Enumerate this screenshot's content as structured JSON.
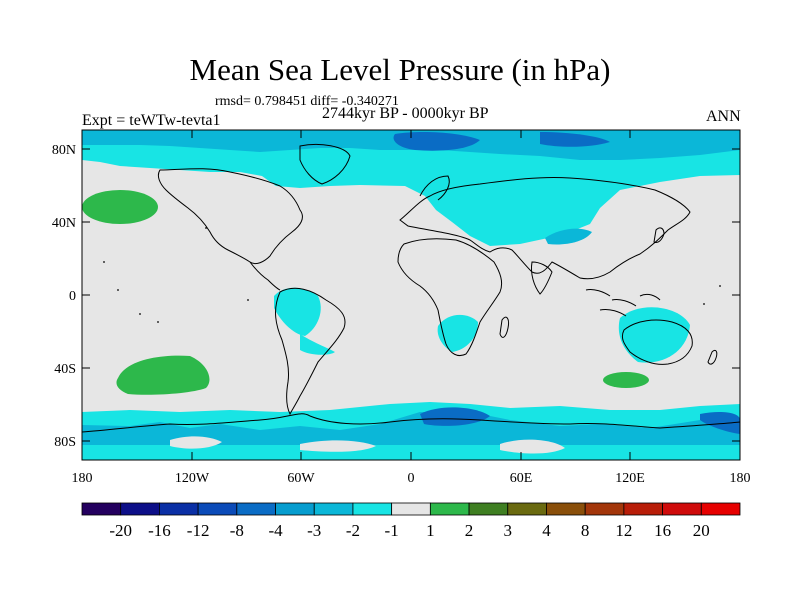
{
  "title": "Mean Sea Level Pressure (in hPa)",
  "stats": "rmsd= 0.798451  diff= -0.340271",
  "experiment": "Expt = teWTw-tevta1",
  "period": "2744kyr BP - 0000kyr BP",
  "season": "ANN",
  "lat_labels": [
    "80N",
    "40N",
    "0",
    "40S",
    "80S"
  ],
  "lon_labels": [
    "180",
    "120W",
    "60W",
    "0",
    "60E",
    "120E",
    "180"
  ],
  "colorbar": {
    "labels": [
      "-20",
      "-16",
      "-12",
      "-8",
      "-4",
      "-3",
      "-2",
      "-1",
      "1",
      "2",
      "3",
      "4",
      "8",
      "12",
      "16",
      "20"
    ],
    "colors": [
      "#24005f",
      "#0d0f88",
      "#0a2fa5",
      "#0b4bb8",
      "#0a6cc5",
      "#079dcf",
      "#0bb7d8",
      "#18e4e4",
      "#e6e6e6",
      "#2db84b",
      "#3f7f22",
      "#6a6a10",
      "#8a4f0a",
      "#a3360a",
      "#b81d08",
      "#cf0b0b",
      "#e60000"
    ]
  },
  "colors": {
    "ocean_neutral": "#e6e6e6",
    "light_negative": "#18e4e4",
    "medium_negative": "#0bb7d8",
    "strong_negative": "#0a6cc5",
    "positive": "#2db84b"
  }
}
